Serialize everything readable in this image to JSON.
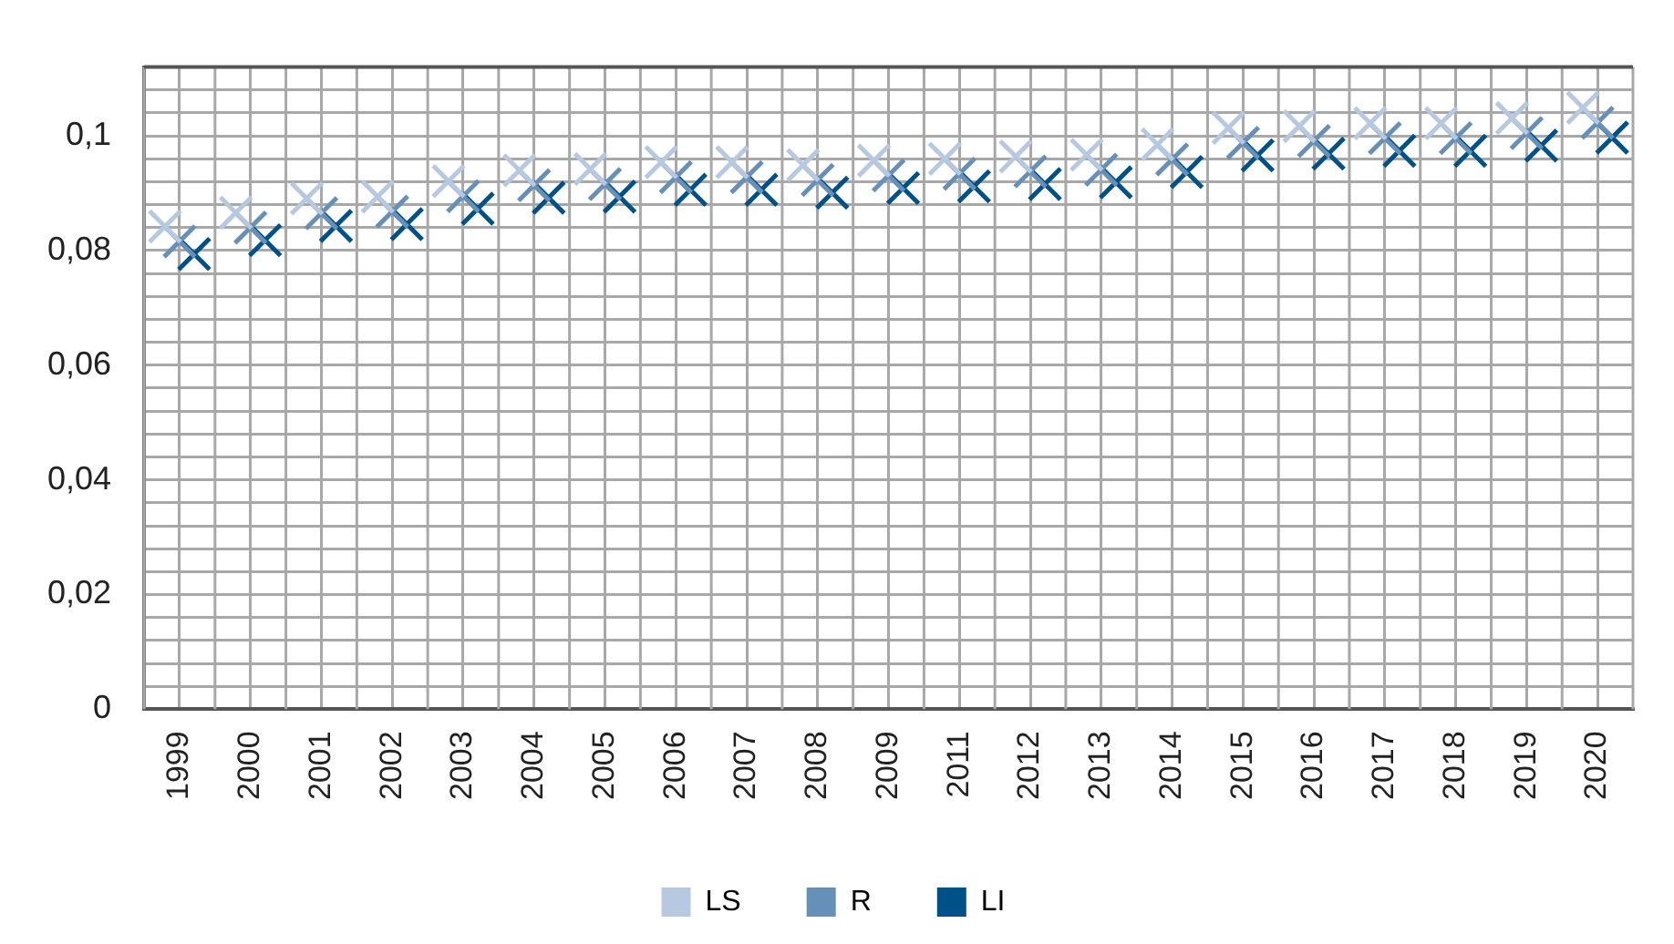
{
  "chart_data": {
    "type": "scatter",
    "categories": [
      "1999",
      "2000",
      "2001",
      "2002",
      "2003",
      "2004",
      "2005",
      "2006",
      "2007",
      "2008",
      "2009",
      "2011",
      "2012",
      "2013",
      "2014",
      "2015",
      "2016",
      "2017",
      "2018",
      "2019",
      "2020"
    ],
    "series": [
      {
        "name": "LS",
        "color": "#b7c9e0",
        "values": [
          0.0842,
          0.0866,
          0.0891,
          0.0894,
          0.0921,
          0.094,
          0.0942,
          0.0954,
          0.0954,
          0.0949,
          0.0957,
          0.096,
          0.0964,
          0.0967,
          0.0985,
          0.1014,
          0.1017,
          0.1022,
          0.1022,
          0.1031,
          0.1049
        ]
      },
      {
        "name": "R",
        "color": "#6790b8",
        "values": [
          0.0816,
          0.084,
          0.0865,
          0.0868,
          0.0895,
          0.0914,
          0.0916,
          0.0928,
          0.0928,
          0.0923,
          0.0931,
          0.0934,
          0.0938,
          0.0941,
          0.0959,
          0.0988,
          0.0991,
          0.0996,
          0.0996,
          0.1005,
          0.1023
        ]
      },
      {
        "name": "LI",
        "color": "#005187",
        "values": [
          0.0794,
          0.0818,
          0.0843,
          0.0846,
          0.0873,
          0.0892,
          0.0894,
          0.0906,
          0.0906,
          0.0901,
          0.0909,
          0.0912,
          0.0916,
          0.0919,
          0.0937,
          0.0966,
          0.0969,
          0.0974,
          0.0974,
          0.0983,
          0.0997
        ]
      }
    ],
    "ylim": [
      0,
      0.112
    ],
    "yticks": [
      {
        "value": 0,
        "label": "0"
      },
      {
        "value": 0.004,
        "label": null
      },
      {
        "value": 0.008,
        "label": null
      },
      {
        "value": 0.012,
        "label": null
      },
      {
        "value": 0.016,
        "label": null
      },
      {
        "value": 0.02,
        "label": "0,02"
      },
      {
        "value": 0.024,
        "label": null
      },
      {
        "value": 0.028,
        "label": null
      },
      {
        "value": 0.032,
        "label": null
      },
      {
        "value": 0.036,
        "label": null
      },
      {
        "value": 0.04,
        "label": "0,04"
      },
      {
        "value": 0.044,
        "label": null
      },
      {
        "value": 0.048,
        "label": null
      },
      {
        "value": 0.052,
        "label": null
      },
      {
        "value": 0.056,
        "label": null
      },
      {
        "value": 0.06,
        "label": "0,06"
      },
      {
        "value": 0.064,
        "label": null
      },
      {
        "value": 0.068,
        "label": null
      },
      {
        "value": 0.072,
        "label": null
      },
      {
        "value": 0.076,
        "label": null
      },
      {
        "value": 0.08,
        "label": "0,08"
      },
      {
        "value": 0.084,
        "label": null
      },
      {
        "value": 0.088,
        "label": null
      },
      {
        "value": 0.092,
        "label": null
      },
      {
        "value": 0.096,
        "label": null
      },
      {
        "value": 0.1,
        "label": "0,1"
      },
      {
        "value": 0.104,
        "label": null
      },
      {
        "value": 0.108,
        "label": null
      },
      {
        "value": 0.112,
        "label": null
      }
    ],
    "grid": true,
    "legend": "bottom",
    "marker": "cross"
  }
}
